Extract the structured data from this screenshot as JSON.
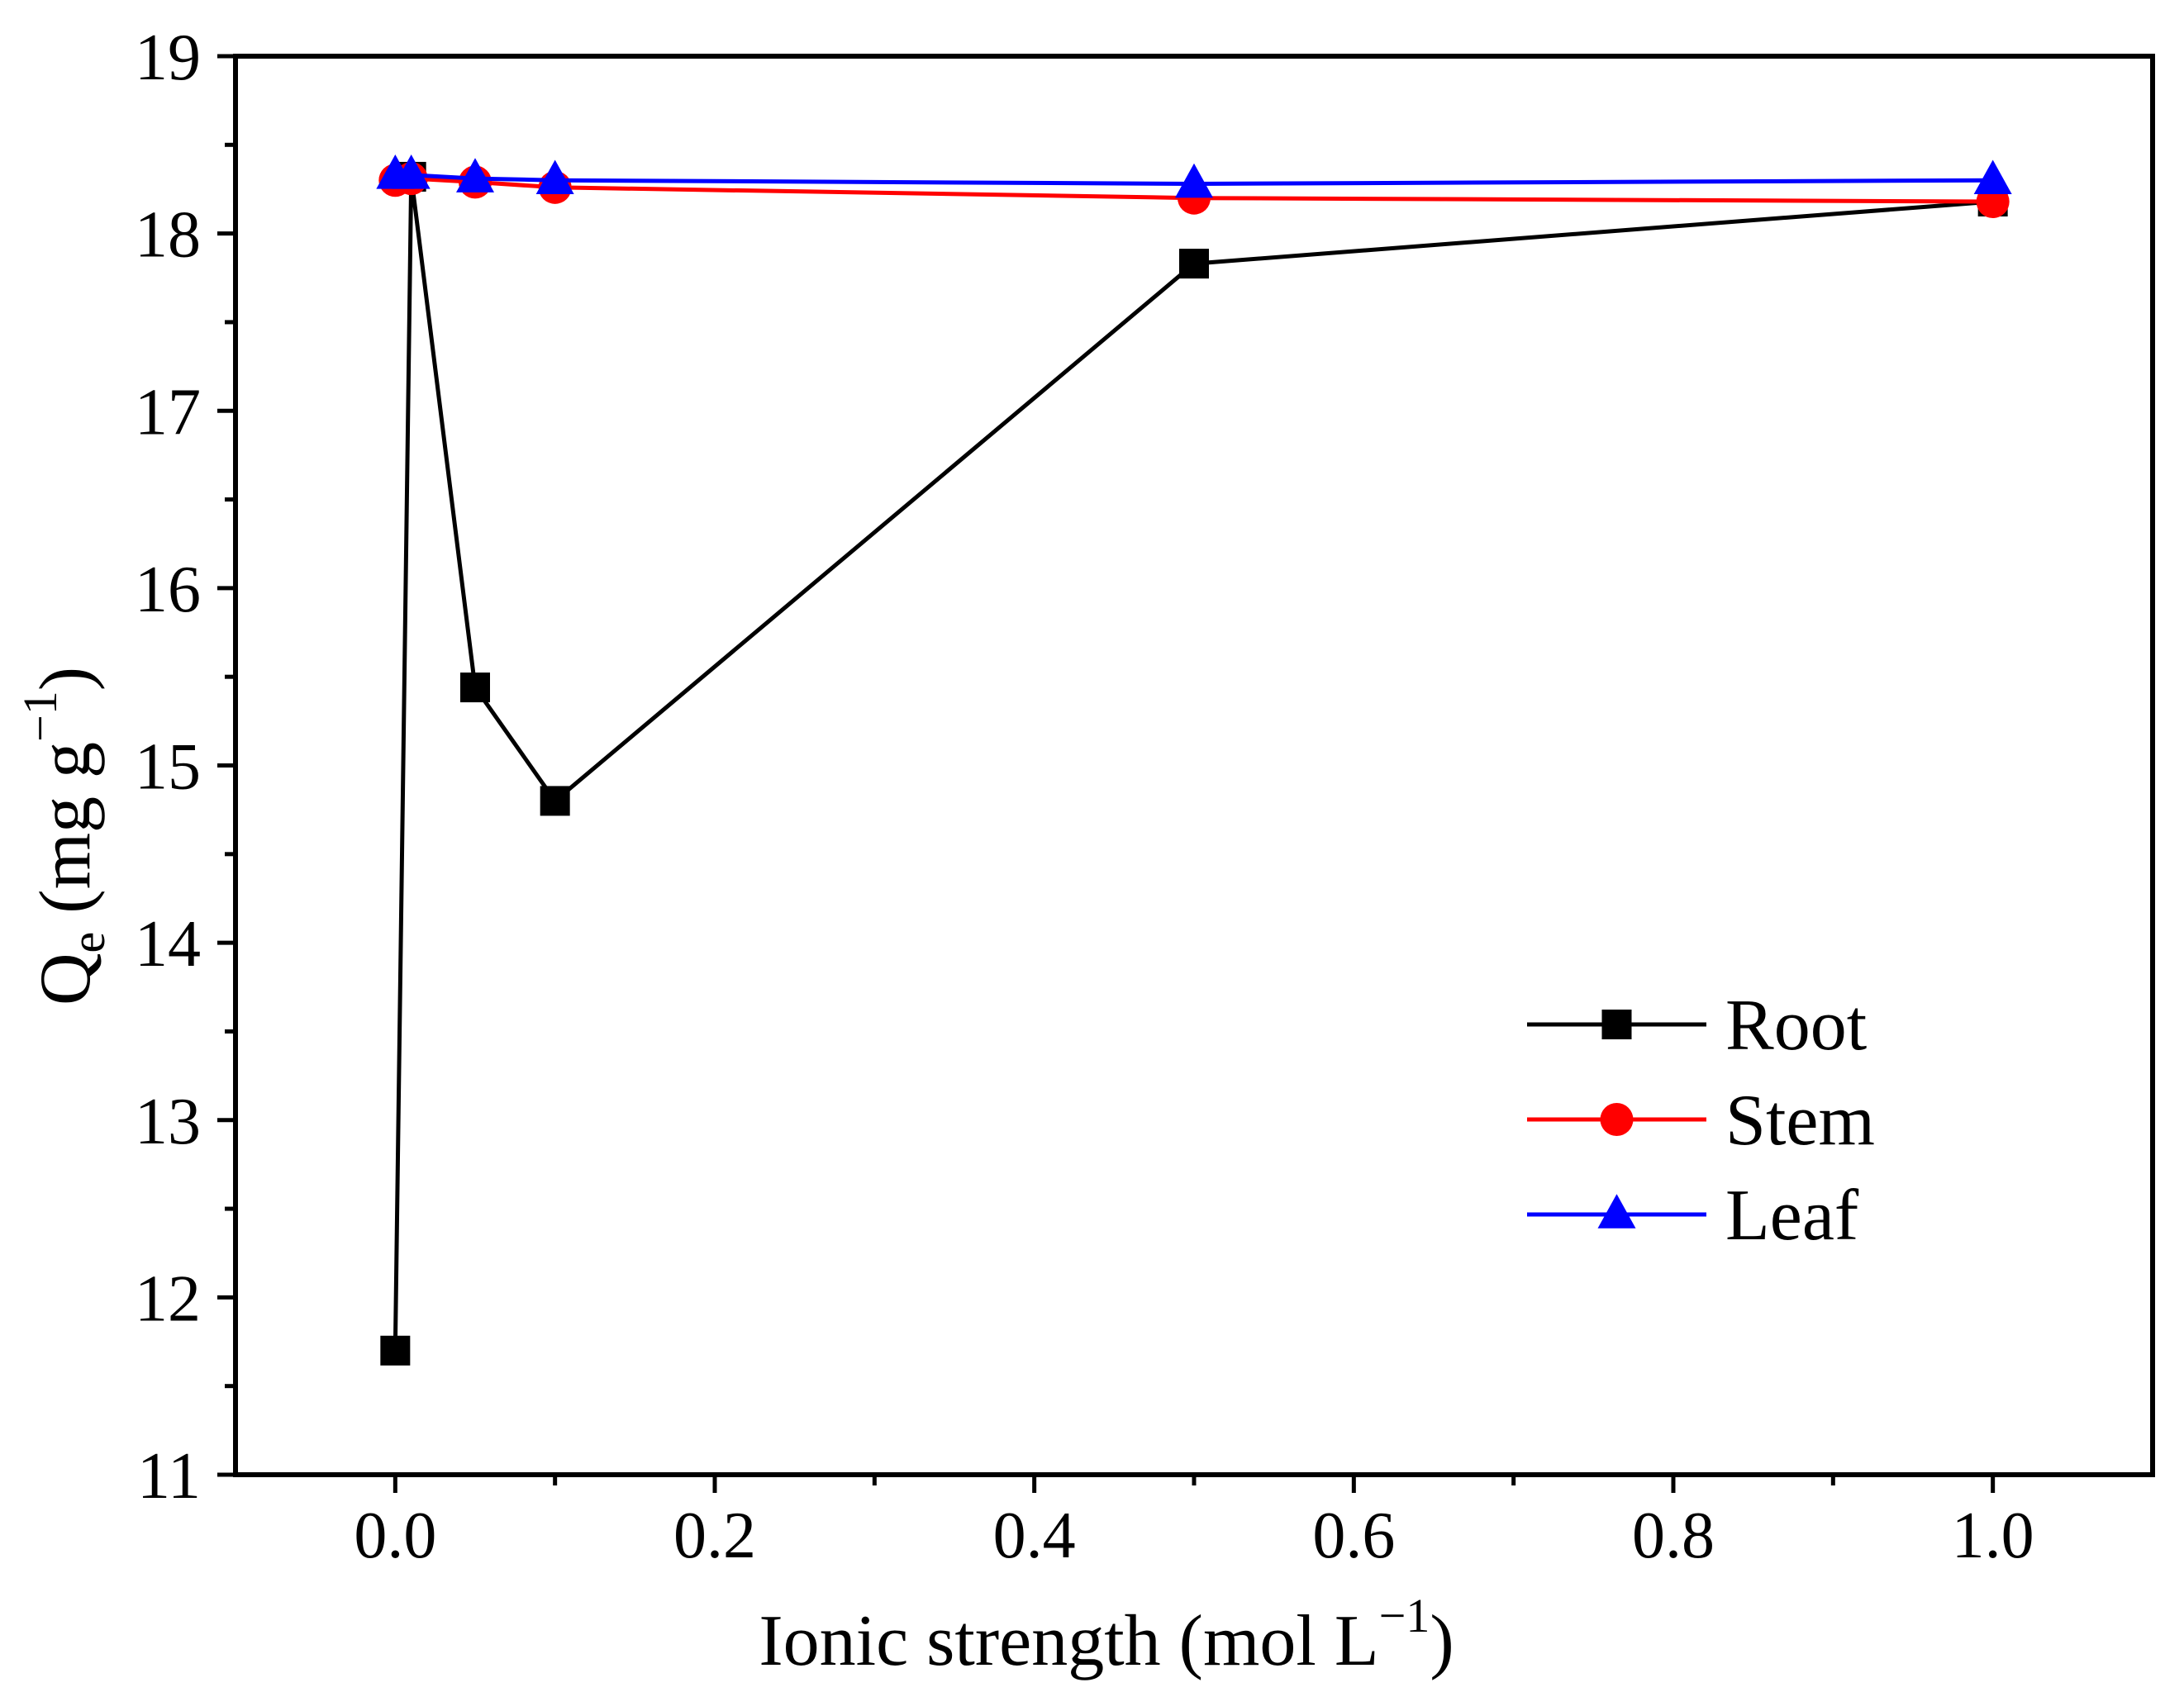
{
  "chart_data": {
    "type": "line",
    "xlabel": {
      "main": "Ionic strength (mol L",
      "sup": "−1",
      "close": ")"
    },
    "ylabel": {
      "main": "Q",
      "sub": "e",
      "unit": " (mg g",
      "sup": "−1",
      "close": ")"
    },
    "xlim": [
      -0.1,
      1.1
    ],
    "ylim": [
      11,
      19
    ],
    "xticks": [
      0.0,
      0.2,
      0.4,
      0.6,
      0.8,
      1.0
    ],
    "xtick_labels": [
      "0.0",
      "0.2",
      "0.4",
      "0.6",
      "0.8",
      "1.0"
    ],
    "yticks": [
      11,
      12,
      13,
      14,
      15,
      16,
      17,
      18,
      19
    ],
    "ytick_labels": [
      "11",
      "12",
      "13",
      "14",
      "15",
      "16",
      "17",
      "18",
      "19"
    ],
    "grid": false,
    "legend_position": "bottom-right",
    "series": [
      {
        "name": "Root",
        "color": "#000000",
        "marker": "square",
        "x": [
          0,
          0.01,
          0.05,
          0.1,
          0.5,
          1.0
        ],
        "y": [
          11.7,
          18.32,
          15.44,
          14.8,
          17.83,
          18.18
        ]
      },
      {
        "name": "Stem",
        "color": "#ff0000",
        "marker": "circle",
        "x": [
          0,
          0.01,
          0.05,
          0.1,
          0.5,
          1.0
        ],
        "y": [
          18.3,
          18.31,
          18.29,
          18.26,
          18.2,
          18.18
        ]
      },
      {
        "name": "Leaf",
        "color": "#0000ff",
        "marker": "triangle",
        "x": [
          0,
          0.01,
          0.05,
          0.1,
          0.5,
          1.0
        ],
        "y": [
          18.33,
          18.33,
          18.31,
          18.3,
          18.28,
          18.3
        ]
      }
    ]
  }
}
